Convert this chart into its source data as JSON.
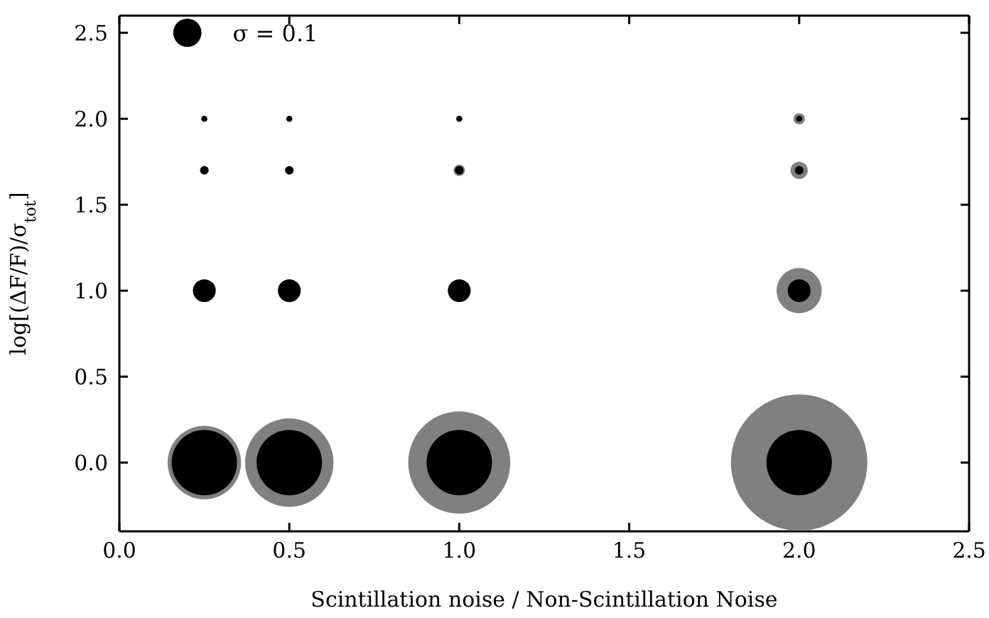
{
  "chart_data": {
    "type": "bubble",
    "xlabel": "Scintillation noise / Non-Scintillation Noise",
    "ylabel": "log[(ΔF/F)/σ$_{tot}$]",
    "xlim": [
      0,
      2.5
    ],
    "xticks": [
      {
        "value": 0,
        "label": "0.0"
      },
      0.5,
      {
        "value": 1,
        "label": "1.0"
      },
      1.5,
      {
        "value": 2,
        "label": "2.0"
      },
      2.5
    ],
    "ylim": [
      -0.4,
      2.6
    ],
    "yticks": [
      {
        "value": 0,
        "label": "0.0"
      },
      0.5,
      {
        "value": 1,
        "label": "1.0"
      },
      1.5,
      {
        "value": 2,
        "label": "2.0"
      },
      2.5
    ],
    "series": [
      {
        "color": "#808080",
        "x": [
          0.25,
          0.5,
          1,
          2,
          2,
          1,
          2,
          2
        ],
        "values": [
          0,
          0,
          0,
          0,
          1,
          1.7,
          1.7,
          2
        ],
        "sizes": [
          0.29,
          0.42,
          0.56,
          1,
          0.11,
          0.007,
          0.016,
          0.007
        ]
      },
      {
        "color": "#000000",
        "x": [
          0.25,
          0.5,
          1,
          2,
          0.25,
          0.5,
          1,
          2,
          0.25,
          0.5,
          1,
          2,
          0.25,
          0.5,
          1,
          2
        ],
        "values": [
          0,
          0,
          0,
          0,
          1,
          1,
          1,
          1,
          1.7,
          1.7,
          1.7,
          1.7,
          2,
          2,
          2,
          2
        ],
        "sizes": [
          0.23,
          0.23,
          0.23,
          0.23,
          0.028,
          0.028,
          0.028,
          0.028,
          0.004,
          0.004,
          0.004,
          0.004,
          0.002,
          0.002,
          0.002,
          0.002
        ]
      },
      {
        "name": "σ = 0.1",
        "color": "#000000",
        "x": [
          0.2
        ],
        "values": [
          2.5
        ],
        "sizes": [
          0.043
        ]
      }
    ]
  }
}
